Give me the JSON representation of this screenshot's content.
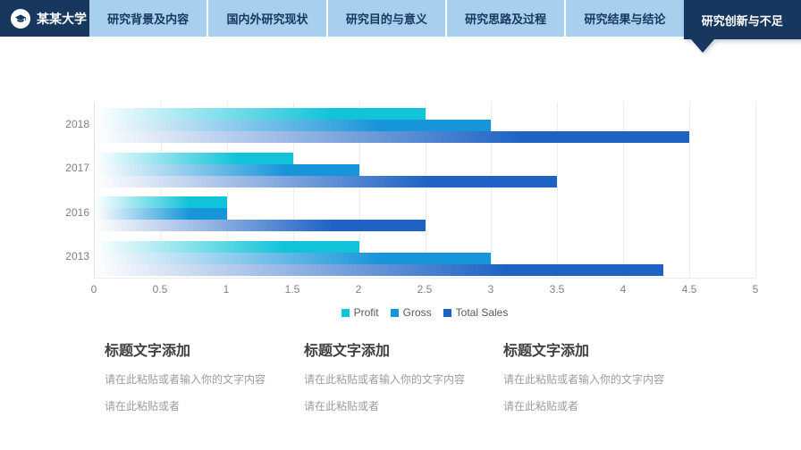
{
  "header": {
    "logo_text": "某某大学",
    "logo_icon": "graduation-cap-icon",
    "tabs": [
      {
        "label": "研究背景及内容",
        "active": false
      },
      {
        "label": "国内外研究现状",
        "active": false
      },
      {
        "label": "研究目的与意义",
        "active": false
      },
      {
        "label": "研究思路及过程",
        "active": false
      },
      {
        "label": "研究结果与结论",
        "active": false
      },
      {
        "label": "研究创新与不足",
        "active": true
      }
    ],
    "colors": {
      "navy": "#17375E",
      "tab_bg": "#A8CFEE",
      "divider": "#FFFFFF"
    }
  },
  "chart_data": {
    "type": "bar",
    "orientation": "horizontal",
    "title": "",
    "categories": [
      "2018",
      "2017",
      "2016",
      "2013"
    ],
    "series": [
      {
        "name": "Profit",
        "color": "#10C3D8",
        "values": [
          2.5,
          1.5,
          1.0,
          2.0
        ]
      },
      {
        "name": "Gross",
        "color": "#1795D9",
        "values": [
          3.0,
          2.0,
          1.0,
          3.0
        ]
      },
      {
        "name": "Total Sales",
        "color": "#1E63C4",
        "values": [
          4.5,
          3.5,
          2.5,
          4.3
        ]
      }
    ],
    "x_ticks": [
      "0",
      "0.5",
      "1",
      "1.5",
      "2",
      "2.5",
      "3",
      "3.5",
      "4",
      "4.5",
      "5"
    ],
    "xlim": [
      0,
      5
    ],
    "grid": true,
    "gridline_color": "#ECECEC",
    "axis_label_color": "#808080",
    "legend_position": "bottom",
    "bar_style": "gradient-fade-from-white-left"
  },
  "text_columns": [
    {
      "title": "标题文字添加",
      "line1": "请在此粘贴或者输入你的文字内容",
      "line2": "请在此粘贴或者"
    },
    {
      "title": "标题文字添加",
      "line1": "请在此粘贴或者输入你的文字内容",
      "line2": "请在此粘贴或者"
    },
    {
      "title": "标题文字添加",
      "line1": "请在此粘贴或者输入你的文字内容",
      "line2": "请在此粘贴或者"
    }
  ]
}
